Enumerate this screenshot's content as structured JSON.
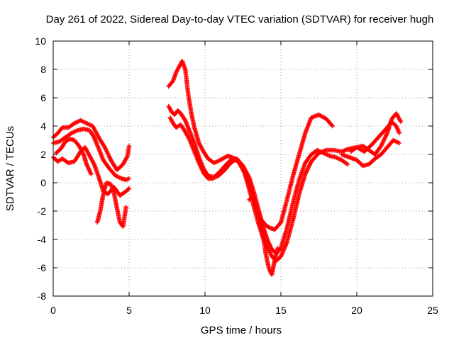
{
  "chart_data": {
    "type": "scatter",
    "title": "Day 261 of 2022, Sidereal Day-to-day VTEC variation (SDTVAR) for receiver hugh",
    "xlabel": "GPS time / hours",
    "ylabel": "SDTVAR / TECUs",
    "xlim": [
      0,
      25
    ],
    "ylim": [
      -8,
      10
    ],
    "x_ticks": [
      "0",
      "5",
      "10",
      "15",
      "20",
      "25"
    ],
    "y_ticks": [
      "-8",
      "-6",
      "-4",
      "-2",
      "0",
      "2",
      "4",
      "6",
      "8",
      "10"
    ],
    "grid": true,
    "marker": "+",
    "color": "#ff0000",
    "series": [
      {
        "x": [
          0.0,
          0.3,
          0.6,
          1.0,
          1.4,
          1.8,
          2.2,
          2.6,
          3.0,
          3.4,
          3.8,
          4.2,
          4.6,
          4.9,
          5.0
        ],
        "y": [
          3.2,
          3.5,
          3.9,
          3.9,
          4.2,
          4.4,
          4.2,
          4.0,
          3.2,
          2.5,
          1.6,
          0.9,
          1.3,
          1.9,
          2.6
        ]
      },
      {
        "x": [
          0.0,
          0.4,
          0.8,
          1.2,
          1.6,
          2.0,
          2.4,
          2.7,
          3.0,
          3.3,
          3.7,
          4.1,
          4.5,
          4.8,
          5.0
        ],
        "y": [
          2.8,
          2.9,
          3.2,
          3.5,
          3.7,
          3.8,
          3.7,
          3.2,
          2.4,
          1.6,
          1.0,
          0.5,
          0.3,
          0.2,
          0.3
        ]
      },
      {
        "x": [
          0.0,
          0.3,
          0.6,
          1.0,
          1.4,
          1.8,
          2.1,
          2.4,
          2.7,
          3.0,
          3.3,
          3.6,
          4.0,
          4.4,
          4.8,
          5.0
        ],
        "y": [
          1.8,
          1.5,
          1.7,
          1.4,
          1.5,
          2.2,
          2.5,
          1.9,
          1.3,
          0.4,
          -0.6,
          -0.8,
          -0.3,
          -0.9,
          -0.6,
          -0.4
        ]
      },
      {
        "x": [
          0.2,
          0.5,
          0.8,
          1.1,
          1.4,
          1.7,
          2.0,
          2.2,
          2.5
        ],
        "y": [
          2.1,
          2.4,
          2.9,
          3.1,
          3.0,
          2.6,
          2.0,
          1.3,
          0.6
        ]
      },
      {
        "x": [
          2.9,
          3.1,
          3.3,
          3.5,
          3.8,
          4.0,
          4.2,
          4.4,
          4.6,
          4.8
        ],
        "y": [
          -2.8,
          -2.0,
          -0.8,
          0.0,
          -0.1,
          -0.7,
          -1.8,
          -2.8,
          -3.1,
          -1.7
        ]
      },
      {
        "x": [
          7.6,
          7.9,
          8.1,
          8.3,
          8.5,
          8.7,
          8.9,
          9.1,
          9.3,
          9.6,
          9.9,
          10.2,
          10.6,
          11.0,
          11.5,
          12.0,
          12.4,
          12.8,
          13.1,
          13.4,
          13.7,
          14.0,
          14.3,
          14.6,
          15.0,
          15.4,
          15.8,
          16.2,
          16.6,
          17.0,
          17.5,
          18.0,
          18.4
        ],
        "y": [
          6.8,
          7.2,
          7.8,
          8.2,
          8.6,
          8.0,
          6.2,
          4.9,
          3.9,
          2.8,
          2.2,
          1.7,
          1.4,
          1.6,
          1.9,
          1.7,
          1.2,
          0.2,
          -0.8,
          -1.8,
          -2.6,
          -3.0,
          -3.2,
          -3.3,
          -2.8,
          -1.2,
          0.5,
          2.0,
          3.5,
          4.6,
          4.8,
          4.5,
          4.0
        ]
      },
      {
        "x": [
          7.6,
          7.8,
          8.0,
          8.2,
          8.4,
          8.7,
          9.0,
          9.3,
          9.6,
          9.9,
          10.2,
          10.6,
          11.0,
          11.4,
          11.8,
          12.2,
          12.6,
          12.9,
          13.2,
          13.5,
          13.8,
          14.1,
          14.4,
          14.7,
          15.0,
          15.4,
          15.8,
          16.2,
          16.6,
          17.0,
          17.5,
          18.0,
          18.5,
          19.0,
          19.5,
          20.0,
          20.5,
          21.0,
          21.5,
          22.0,
          22.3,
          22.6,
          22.8
        ],
        "y": [
          5.4,
          5.0,
          4.8,
          5.1,
          4.9,
          4.4,
          3.6,
          2.8,
          1.8,
          1.0,
          0.5,
          0.4,
          0.8,
          1.3,
          1.7,
          1.5,
          0.7,
          -0.4,
          -1.6,
          -2.8,
          -3.8,
          -4.5,
          -5.2,
          -5.5,
          -5.2,
          -4.2,
          -2.6,
          -0.8,
          0.6,
          1.5,
          2.1,
          2.3,
          2.3,
          2.2,
          2.4,
          2.5,
          2.2,
          2.7,
          3.3,
          3.9,
          4.3,
          4.0,
          3.5
        ]
      },
      {
        "x": [
          7.7,
          7.9,
          8.1,
          8.4,
          8.7,
          9.0,
          9.3,
          9.6,
          9.9,
          10.2,
          10.5,
          10.9,
          11.3,
          11.7,
          12.1,
          12.5,
          12.9,
          13.2,
          13.5,
          13.8,
          14.1,
          14.4,
          14.7,
          15.0,
          15.4,
          15.8,
          16.2,
          16.6,
          17.0,
          17.4,
          17.8,
          18.2,
          18.6,
          19.0,
          19.4
        ],
        "y": [
          4.6,
          4.2,
          3.9,
          4.1,
          3.6,
          3.0,
          2.2,
          1.4,
          0.7,
          0.3,
          0.3,
          0.5,
          0.9,
          1.4,
          1.7,
          1.2,
          0.4,
          -0.6,
          -1.8,
          -3.0,
          -4.0,
          -4.7,
          -5.0,
          -4.6,
          -3.2,
          -1.4,
          0.2,
          1.4,
          2.0,
          2.3,
          2.1,
          1.9,
          1.8,
          1.6,
          1.3
        ]
      },
      {
        "x": [
          12.9,
          13.2,
          13.5,
          13.8,
          14.0,
          14.2,
          14.4,
          14.6,
          14.8
        ],
        "y": [
          -1.2,
          -1.0,
          -2.2,
          -3.6,
          -5.0,
          -6.0,
          -6.5,
          -5.4,
          -4.6
        ]
      },
      {
        "x": [
          19.6,
          20.0,
          20.4,
          20.8,
          21.2,
          21.6,
          22.0,
          22.3,
          22.6,
          22.9
        ],
        "y": [
          2.2,
          2.5,
          2.6,
          2.3,
          2.0,
          2.6,
          3.5,
          4.5,
          4.9,
          4.3
        ]
      },
      {
        "x": [
          19.0,
          19.5,
          20.0,
          20.4,
          20.8,
          21.2,
          21.6,
          22.0,
          22.4,
          22.8
        ],
        "y": [
          2.0,
          1.8,
          1.6,
          1.2,
          1.3,
          1.7,
          2.0,
          2.5,
          3.0,
          2.8
        ]
      }
    ]
  }
}
